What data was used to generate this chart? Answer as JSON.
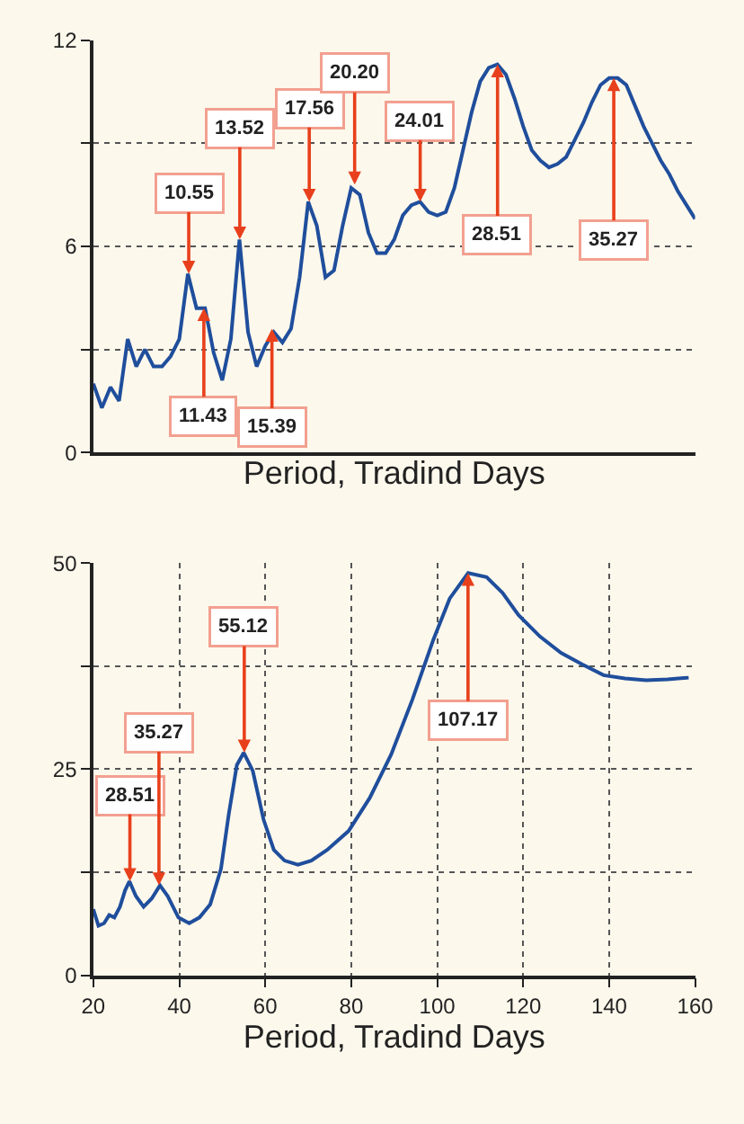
{
  "chart_data": [
    {
      "type": "line",
      "xlabel": "Period, Tradind Days",
      "ylim": [
        0,
        12
      ],
      "tick_labels": "y",
      "grid": true,
      "line_style": "solid",
      "marker": "none",
      "yticks": [
        0,
        {
          "value": 3,
          "label": null
        },
        6,
        {
          "value": 9,
          "label": null
        },
        12
      ],
      "categories": [
        null,
        null,
        null,
        null,
        null,
        null,
        null,
        null,
        null,
        null,
        null,
        null,
        null,
        null,
        null,
        null,
        null,
        null,
        null,
        null,
        null,
        null,
        null,
        null,
        null,
        null,
        null,
        null,
        null,
        null,
        null,
        null,
        null,
        null,
        null,
        null,
        null,
        null,
        null,
        null,
        null,
        null,
        null,
        null,
        null,
        null,
        null,
        null,
        null,
        null,
        null,
        null,
        null,
        null,
        null,
        null,
        null,
        null,
        null,
        null,
        null,
        null,
        null,
        null,
        null,
        null,
        null,
        null,
        null,
        null,
        null
      ],
      "series": [
        {
          "color": "#1f4e9c",
          "values": [
            2.0,
            1.3,
            1.9,
            1.5,
            3.3,
            2.5,
            3.0,
            2.5,
            2.5,
            2.8,
            3.3,
            5.2,
            4.2,
            4.2,
            2.9,
            2.1,
            3.3,
            6.2,
            3.5,
            2.5,
            3.1,
            3.5,
            3.2,
            3.6,
            5.1,
            7.3,
            6.6,
            5.1,
            5.3,
            6.6,
            7.7,
            7.5,
            6.4,
            5.8,
            5.8,
            6.2,
            6.9,
            7.2,
            7.3,
            7.0,
            6.9,
            7.0,
            7.7,
            8.8,
            9.9,
            10.8,
            11.2,
            11.3,
            11.0,
            10.3,
            9.5,
            8.8,
            8.5,
            8.3,
            8.4,
            8.6,
            9.1,
            9.6,
            10.2,
            10.7,
            10.9,
            10.9,
            10.7,
            10.1,
            9.5,
            9.0,
            8.5,
            8.1,
            7.6,
            7.2,
            6.8
          ]
        }
      ],
      "annotations": [
        {
          "text": "10.55",
          "y": 5.2
        },
        {
          "text": "11.43",
          "y": 4.2
        },
        {
          "text": "13.52",
          "y": 6.2
        },
        {
          "text": "15.39",
          "y": 3.6
        },
        {
          "text": "17.56",
          "y": 7.3
        },
        {
          "text": "20.20",
          "y": 7.8
        },
        {
          "text": "24.01",
          "y": 7.3
        },
        {
          "text": "28.51",
          "y": 11.3
        },
        {
          "text": "35.27",
          "y": 10.9
        }
      ]
    },
    {
      "type": "line",
      "xlabel": "Period, Tradind Days",
      "xlim": [
        20,
        160
      ],
      "ylim": [
        0,
        50
      ],
      "grid": true,
      "line_style": "solid",
      "marker": "none",
      "xticks": [
        20,
        40,
        60,
        80,
        100,
        120,
        140,
        160
      ],
      "yticks": [
        0,
        {
          "value": 12.5,
          "label": null
        },
        25,
        {
          "value": 37.5,
          "label": null
        },
        50
      ],
      "x": [
        20,
        21.2,
        22.5,
        23.7,
        24.9,
        26.2,
        27.4,
        28.4,
        29.9,
        31.7,
        33.6,
        35.5,
        37.3,
        39.8,
        42.3,
        44.7,
        47.2,
        49.7,
        51.5,
        53.4,
        55.0,
        57.1,
        59.6,
        62.0,
        64.5,
        67.6,
        70.7,
        74.4,
        79.4,
        84.3,
        89.3,
        94.2,
        99.1,
        102.9,
        107.2,
        111.5,
        115.2,
        118.9,
        123.9,
        128.8,
        133.8,
        138.7,
        143.7,
        148.6,
        153.6,
        158.5
      ],
      "series": [
        {
          "color": "#1f4e9c",
          "values": [
            8.0,
            6.0,
            6.3,
            7.3,
            7.0,
            8.3,
            10.3,
            11.4,
            9.6,
            8.3,
            9.3,
            10.9,
            9.6,
            7.0,
            6.3,
            7.0,
            8.6,
            12.9,
            19.5,
            25.5,
            27.0,
            24.8,
            18.9,
            15.2,
            13.9,
            13.4,
            13.9,
            15.2,
            17.5,
            21.5,
            26.8,
            33.4,
            40.7,
            45.7,
            48.8,
            48.3,
            46.4,
            43.7,
            41.1,
            39.1,
            37.7,
            36.4,
            36.0,
            35.8,
            35.9,
            36.1
          ]
        }
      ],
      "annotations": [
        {
          "text": "28.51",
          "x": 28.51,
          "y": 11.4
        },
        {
          "text": "35.27",
          "x": 35.27,
          "y": 10.9
        },
        {
          "text": "55.12",
          "x": 55.12,
          "y": 27.0
        },
        {
          "text": "107.17",
          "x": 107.17,
          "y": 48.8
        }
      ]
    }
  ]
}
